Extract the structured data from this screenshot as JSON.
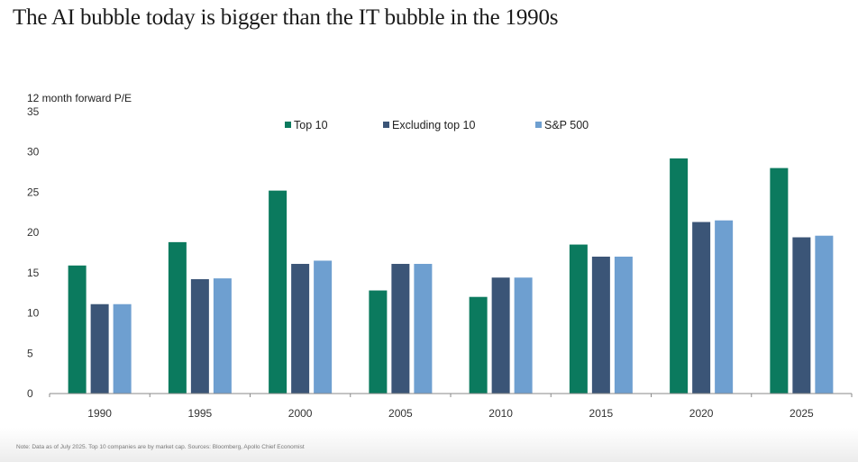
{
  "chart_data": {
    "type": "bar",
    "title": "The AI bubble today is bigger than the IT bubble in the 1990s",
    "xlabel": "",
    "ylabel": "12 month forward P/E",
    "ylim": [
      0,
      35
    ],
    "yticks": [
      "0",
      "5",
      "10",
      "15",
      "20",
      "25",
      "30",
      "35"
    ],
    "grid": false,
    "legend_position": "top-center",
    "categories": [
      "1990",
      "1995",
      "2000",
      "2005",
      "2010",
      "2015",
      "2020",
      "2025"
    ],
    "series": [
      {
        "name": "Top 10",
        "color": "#0b7a5e",
        "values": [
          15.9,
          18.8,
          25.2,
          12.8,
          12.0,
          18.5,
          29.2,
          28.0
        ]
      },
      {
        "name": "Excluding top 10",
        "color": "#3b5577",
        "values": [
          11.1,
          14.2,
          16.1,
          16.1,
          14.4,
          17.0,
          21.3,
          19.4
        ]
      },
      {
        "name": "S&P 500",
        "color": "#6e9fd0",
        "values": [
          11.1,
          14.3,
          16.5,
          16.1,
          14.4,
          17.0,
          21.5,
          19.6
        ]
      }
    ],
    "footnote": "Note: Data as of July 2025. Top 10 companies are by market cap. Sources: Bloomberg, Apollo Chief Economist"
  }
}
